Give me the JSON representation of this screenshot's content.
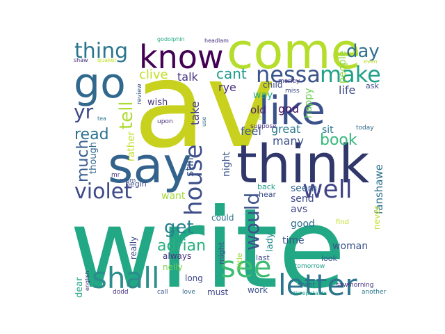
{
  "words": [
    {
      "text": "write",
      "color": "#22a884"
    },
    {
      "text": "av",
      "color": "#c8d21e"
    },
    {
      "text": "think",
      "color": "#30386b"
    },
    {
      "text": "come",
      "color": "#b5dd2b"
    },
    {
      "text": "say",
      "color": "#33638d"
    },
    {
      "text": "go",
      "color": "#31688e"
    },
    {
      "text": "know",
      "color": "#440154"
    },
    {
      "text": "like",
      "color": "#3b518b"
    },
    {
      "text": "shall",
      "color": "#2c8e8c"
    },
    {
      "text": "see",
      "color": "#3fbc73"
    },
    {
      "text": "letter",
      "color": "#2b758e"
    },
    {
      "text": "house",
      "color": "#3d4e8a"
    },
    {
      "text": "well",
      "color": "#414487"
    },
    {
      "text": "violet",
      "color": "#3e4a89"
    },
    {
      "text": "nessa",
      "color": "#3a548c"
    },
    {
      "text": "make",
      "color": "#1fa187"
    },
    {
      "text": "thing",
      "color": "#2a768e"
    },
    {
      "text": "would",
      "color": "#3b528b"
    },
    {
      "text": "day",
      "color": "#2d718e"
    },
    {
      "text": "yr",
      "color": "#3e4989"
    },
    {
      "text": "tell",
      "color": "#addc30"
    },
    {
      "text": "book",
      "color": "#35b779"
    },
    {
      "text": "get",
      "color": "#27808e"
    },
    {
      "text": "adrian",
      "color": "#2ab07f"
    },
    {
      "text": "cant",
      "color": "#1f9a8a"
    },
    {
      "text": "read",
      "color": "#2c728e"
    },
    {
      "text": "much",
      "color": "#365c8d"
    },
    {
      "text": "rather",
      "color": "#c0df25"
    },
    {
      "text": "clive",
      "color": "#c2df23"
    },
    {
      "text": "talk",
      "color": "#46327e"
    },
    {
      "text": "rye",
      "color": "#472d7b"
    },
    {
      "text": "old",
      "color": "#482475"
    },
    {
      "text": "god",
      "color": "#471164"
    },
    {
      "text": "feel",
      "color": "#3a548c"
    },
    {
      "text": "great",
      "color": "#2a788e"
    },
    {
      "text": "many",
      "color": "#3b528b"
    },
    {
      "text": "happy",
      "color": "#6ece58"
    },
    {
      "text": "sit",
      "color": "#2a788e"
    },
    {
      "text": "life",
      "color": "#3e4989"
    },
    {
      "text": "people",
      "color": "#93d741"
    },
    {
      "text": "child",
      "color": "#3e4989"
    },
    {
      "text": "ask",
      "color": "#3e4989"
    },
    {
      "text": "way",
      "color": "#28ae80"
    },
    {
      "text": "fanshawe",
      "color": "#2c728e"
    },
    {
      "text": "take",
      "color": "#424086"
    },
    {
      "text": "still",
      "color": "#365d8d"
    },
    {
      "text": "night",
      "color": "#39558c"
    },
    {
      "text": "want",
      "color": "#a2da37"
    },
    {
      "text": "seem",
      "color": "#33638d"
    },
    {
      "text": "send",
      "color": "#3e4989"
    },
    {
      "text": "avs",
      "color": "#3f4788"
    },
    {
      "text": "good",
      "color": "#2e6e8e"
    },
    {
      "text": "time",
      "color": "#39558c"
    },
    {
      "text": "lady",
      "color": "#23898e"
    },
    {
      "text": "woman",
      "color": "#3b528b"
    },
    {
      "text": "never",
      "color": "#c0df25"
    },
    {
      "text": "though",
      "color": "#31688e"
    },
    {
      "text": "begin",
      "color": "#3e4a89"
    },
    {
      "text": "really",
      "color": "#3e4a89"
    },
    {
      "text": "little",
      "color": "#9bd93c"
    },
    {
      "text": "always",
      "color": "#46337f"
    },
    {
      "text": "nelly",
      "color": "#7ad151"
    },
    {
      "text": "long",
      "color": "#3f4889"
    },
    {
      "text": "must",
      "color": "#404688"
    },
    {
      "text": "work",
      "color": "#3b528b"
    },
    {
      "text": "dear",
      "color": "#20a386"
    },
    {
      "text": "could",
      "color": "#2d708e"
    },
    {
      "text": "might",
      "color": "#3b528b"
    },
    {
      "text": "back",
      "color": "#1f9e89"
    },
    {
      "text": "hear",
      "color": "#3e4989"
    },
    {
      "text": "last",
      "color": "#3f4788"
    },
    {
      "text": "look",
      "color": "#3b528b"
    },
    {
      "text": "find",
      "color": "#c0df25"
    },
    {
      "text": "tomorrow",
      "color": "#1f9e89"
    },
    {
      "text": "sheet",
      "color": "#31688e"
    },
    {
      "text": "saw",
      "color": "#46327e"
    },
    {
      "text": "morning",
      "color": "#46327e"
    },
    {
      "text": "another",
      "color": "#2a788e"
    },
    {
      "text": "disreputable",
      "color": "#20a386"
    },
    {
      "text": "call",
      "color": "#3b528b"
    },
    {
      "text": "love",
      "color": "#31688e"
    },
    {
      "text": "dodd",
      "color": "#46327e"
    },
    {
      "text": "english",
      "color": "#46327e"
    },
    {
      "text": "room",
      "color": "#39558c"
    },
    {
      "text": "mr",
      "color": "#46327e"
    },
    {
      "text": "review",
      "color": "#39558c"
    },
    {
      "text": "tea",
      "color": "#2a788e"
    },
    {
      "text": "wish",
      "color": "#46327e"
    },
    {
      "text": "upon",
      "color": "#46327e"
    },
    {
      "text": "use",
      "color": "#31688e"
    },
    {
      "text": "miss",
      "color": "#3e4989"
    },
    {
      "text": "morley",
      "color": "#46327e"
    },
    {
      "text": "give",
      "color": "#c0df25"
    },
    {
      "text": "suppose",
      "color": "#46327e"
    },
    {
      "text": "today",
      "color": "#31688e"
    },
    {
      "text": "even",
      "color": "#c0df25"
    },
    {
      "text": "godolphin",
      "color": "#22a884"
    },
    {
      "text": "headlam",
      "color": "#46327e"
    },
    {
      "text": "shaw",
      "color": "#46327e"
    },
    {
      "text": "quaker",
      "color": "#c0df25"
    }
  ]
}
